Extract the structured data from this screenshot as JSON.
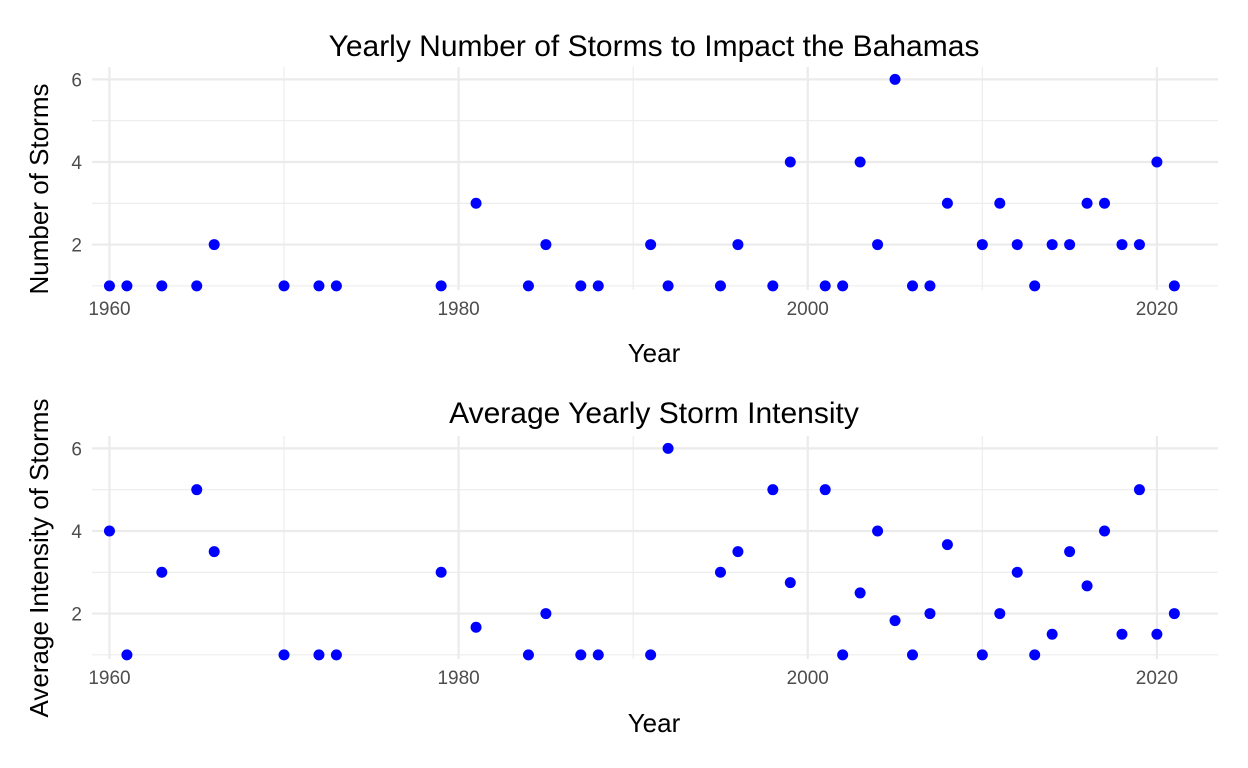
{
  "chart_data": [
    {
      "type": "scatter",
      "title": "Yearly Number of Storms to Impact the Bahamas",
      "xlabel": "Year",
      "ylabel": "Number of Storms",
      "xlim": [
        1959,
        2023.5
      ],
      "ylim": [
        0.9,
        6.3
      ],
      "x_ticks": [
        1960,
        1980,
        2000,
        2020
      ],
      "y_ticks": [
        2,
        4,
        6
      ],
      "grid": true,
      "point_color": "#0000ff",
      "x": [
        1960,
        1961,
        1963,
        1965,
        1966,
        1970,
        1972,
        1973,
        1979,
        1981,
        1984,
        1985,
        1987,
        1988,
        1991,
        1992,
        1995,
        1996,
        1998,
        1999,
        2001,
        2002,
        2003,
        2004,
        2005,
        2006,
        2007,
        2008,
        2010,
        2011,
        2012,
        2013,
        2014,
        2015,
        2016,
        2017,
        2018,
        2019,
        2020,
        2021
      ],
      "y": [
        1,
        1,
        1,
        1,
        2,
        1,
        1,
        1,
        1,
        3,
        1,
        2,
        1,
        1,
        2,
        1,
        1,
        2,
        1,
        4,
        1,
        1,
        4,
        2,
        6,
        1,
        1,
        3,
        2,
        3,
        2,
        1,
        2,
        2,
        3,
        3,
        2,
        2,
        4,
        1
      ]
    },
    {
      "type": "scatter",
      "title": "Average Yearly Storm Intensity",
      "xlabel": "Year",
      "ylabel": "Average Intensity of Storms",
      "xlim": [
        1959,
        2023.5
      ],
      "ylim": [
        0.9,
        6.3
      ],
      "x_ticks": [
        1960,
        1980,
        2000,
        2020
      ],
      "y_ticks": [
        2,
        4,
        6
      ],
      "grid": true,
      "point_color": "#0000ff",
      "x": [
        1960,
        1961,
        1963,
        1965,
        1966,
        1970,
        1972,
        1973,
        1979,
        1981,
        1984,
        1985,
        1987,
        1988,
        1991,
        1992,
        1995,
        1996,
        1998,
        1999,
        2001,
        2002,
        2003,
        2004,
        2005,
        2006,
        2007,
        2008,
        2010,
        2011,
        2012,
        2013,
        2014,
        2015,
        2016,
        2017,
        2018,
        2019,
        2020,
        2021
      ],
      "y": [
        4,
        1,
        3,
        5,
        3.5,
        1,
        1,
        1,
        3,
        1.67,
        1,
        2,
        1,
        1,
        1,
        6,
        3,
        3.5,
        5,
        2.75,
        5,
        1,
        2.5,
        4,
        1.83,
        1,
        2,
        3.67,
        1,
        2,
        3,
        1,
        1.5,
        3.5,
        2.67,
        4,
        1.5,
        5,
        1.5,
        2
      ]
    }
  ]
}
